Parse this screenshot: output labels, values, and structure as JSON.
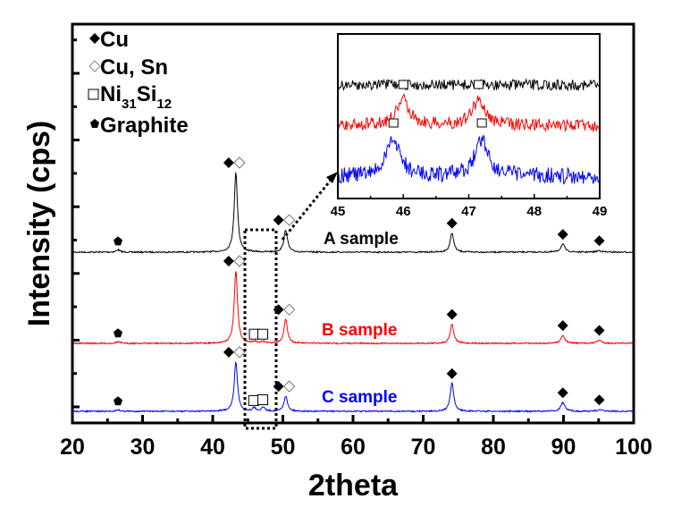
{
  "chart_data": {
    "type": "line",
    "title": "",
    "xlabel": "2theta",
    "ylabel": "Intensity (cps)",
    "xlim": [
      20,
      100
    ],
    "x_ticks": [
      20,
      30,
      40,
      50,
      60,
      70,
      80,
      90,
      100
    ],
    "y_tick_labels_shown": false,
    "grid": false,
    "legend": {
      "placement": "top-left",
      "entries": [
        {
          "marker": "filled-diamond",
          "label": "Cu"
        },
        {
          "marker": "open-diamond",
          "label": "Cu, Sn"
        },
        {
          "marker": "open-square",
          "label": "Ni",
          "sub1": "31",
          "mid": "Si",
          "sub2": "12"
        },
        {
          "marker": "filled-pentagon",
          "label": "Graphite"
        }
      ]
    },
    "series": [
      {
        "name": "A sample",
        "color": "#000000",
        "offset_rel": 2.0,
        "peaks": [
          {
            "x": 26.5,
            "height": 0.03,
            "phase": "Graphite"
          },
          {
            "x": 43.3,
            "height": 1.0,
            "phase": "Cu; Cu, Sn"
          },
          {
            "x": 50.4,
            "height": 0.28,
            "phase": "Cu; Cu, Sn"
          },
          {
            "x": 74.1,
            "height": 0.24,
            "phase": "Cu"
          },
          {
            "x": 89.9,
            "height": 0.1,
            "phase": "Cu"
          },
          {
            "x": 95.1,
            "height": 0.02,
            "phase": "Cu"
          }
        ]
      },
      {
        "name": "B sample",
        "color": "#ff0000",
        "offset_rel": 1.0,
        "peaks": [
          {
            "x": 26.5,
            "height": 0.02,
            "phase": "Graphite"
          },
          {
            "x": 43.3,
            "height": 0.91,
            "phase": "Cu; Cu, Sn"
          },
          {
            "x": 46.0,
            "height": 0.02,
            "phase": "Ni31Si12"
          },
          {
            "x": 47.2,
            "height": 0.02,
            "phase": "Ni31Si12"
          },
          {
            "x": 50.4,
            "height": 0.3,
            "phase": "Cu; Cu, Sn"
          },
          {
            "x": 74.1,
            "height": 0.24,
            "phase": "Cu"
          },
          {
            "x": 89.9,
            "height": 0.1,
            "phase": "Cu"
          },
          {
            "x": 95.1,
            "height": 0.04,
            "phase": "Cu"
          }
        ]
      },
      {
        "name": "C sample",
        "color": "#0000ff",
        "offset_rel": 0.0,
        "peaks": [
          {
            "x": 26.5,
            "height": 0.02,
            "phase": "Graphite"
          },
          {
            "x": 43.3,
            "height": 0.62,
            "phase": "Cu; Cu, Sn"
          },
          {
            "x": 45.9,
            "height": 0.04,
            "phase": "Ni31Si12"
          },
          {
            "x": 47.2,
            "height": 0.05,
            "phase": "Ni31Si12"
          },
          {
            "x": 50.4,
            "height": 0.19,
            "phase": "Cu; Cu, Sn"
          },
          {
            "x": 74.1,
            "height": 0.35,
            "phase": "Cu"
          },
          {
            "x": 89.9,
            "height": 0.11,
            "phase": "Cu"
          },
          {
            "x": 95.1,
            "height": 0.02,
            "phase": "Cu"
          }
        ]
      }
    ],
    "annotations": [
      {
        "type": "zoom-box",
        "x_range": [
          45,
          49
        ],
        "description": "dotted rectangle with dotted arrow pointing to inset"
      }
    ],
    "inset": {
      "xlim": [
        45,
        49
      ],
      "x_ticks": [
        45,
        46,
        47,
        48,
        49
      ],
      "series": [
        {
          "name": "A sample",
          "color": "#000000",
          "peaks": []
        },
        {
          "name": "B sample",
          "color": "#ff0000",
          "peaks": [
            {
              "x": 46.0,
              "phase": "Ni31Si12"
            },
            {
              "x": 47.15,
              "phase": "Ni31Si12"
            }
          ]
        },
        {
          "name": "C sample",
          "color": "#0000ff",
          "peaks": [
            {
              "x": 45.85,
              "phase": "Ni31Si12"
            },
            {
              "x": 47.2,
              "phase": "Ni31Si12"
            }
          ]
        }
      ]
    }
  }
}
